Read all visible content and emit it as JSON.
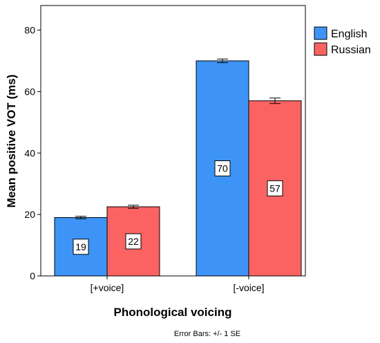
{
  "chart_data": {
    "type": "bar",
    "xlabel": "Phonological voicing",
    "ylabel": "Mean positive VOT (ms)",
    "ylim": [
      0,
      88
    ],
    "yticks": [
      0,
      20,
      40,
      60,
      80
    ],
    "categories": [
      "[+voice]",
      "[-voice]"
    ],
    "series": [
      {
        "name": "English",
        "values": [
          19,
          70
        ],
        "errors": [
          0.4,
          0.6
        ],
        "labels": [
          "19",
          "70"
        ],
        "color": "#3d94f6"
      },
      {
        "name": "Russian",
        "values": [
          22.5,
          57
        ],
        "errors": [
          0.5,
          0.9
        ],
        "labels": [
          "22",
          "57"
        ],
        "color": "#fb6363"
      }
    ],
    "legend": "top-right",
    "grid": false,
    "footnote": "Error Bars: +/- 1 SE"
  }
}
